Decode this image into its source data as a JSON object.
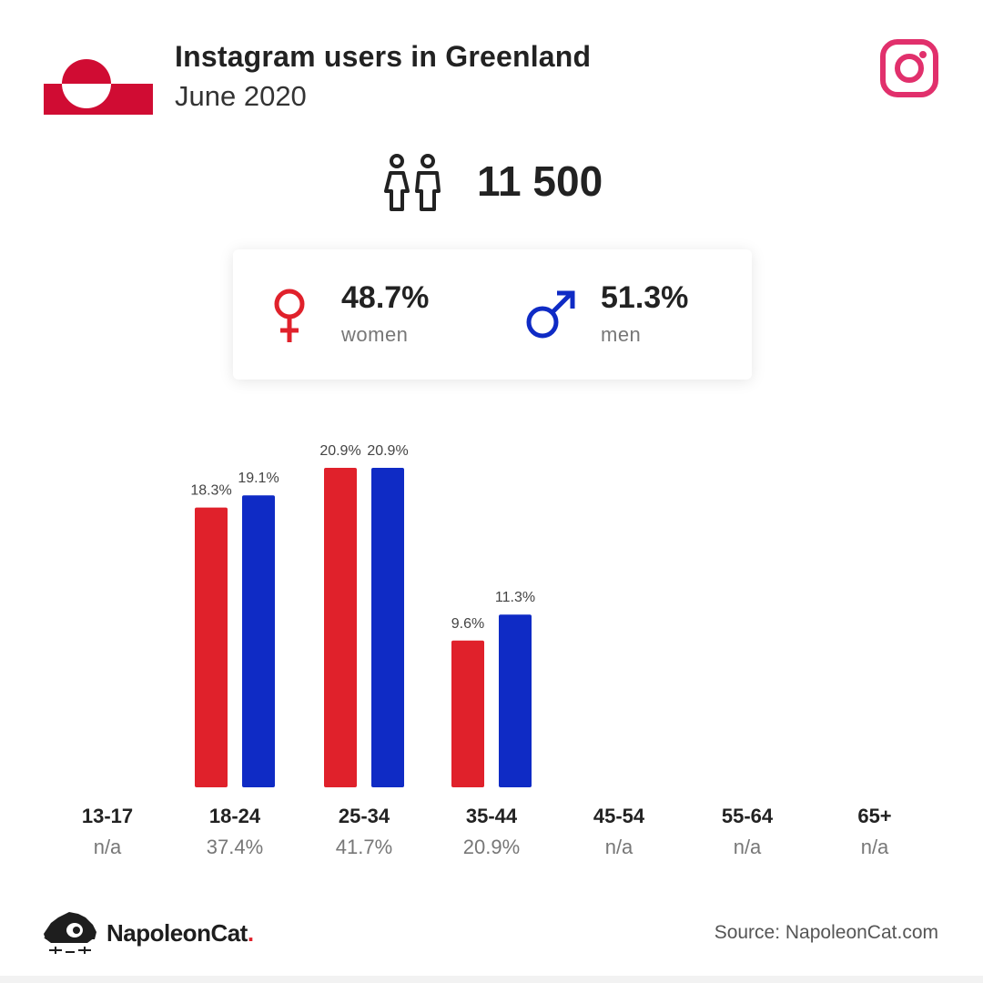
{
  "header": {
    "title": "Instagram users in Greenland",
    "subtitle": "June 2020"
  },
  "total_users": "11 500",
  "gender": {
    "women": {
      "pct": "48.7%",
      "label": "women",
      "color": "#e0212b"
    },
    "men": {
      "pct": "51.3%",
      "label": "men",
      "color": "#0f2bc5"
    }
  },
  "icons": {
    "flag": "greenland-flag-icon",
    "instagram": "instagram-logo-icon",
    "users": "users-icon",
    "female": "female-symbol-icon",
    "male": "male-symbol-icon",
    "brand": "napoleoncat-logo-icon"
  },
  "chart_data": {
    "type": "bar",
    "categories": [
      "13-17",
      "18-24",
      "25-34",
      "35-44",
      "45-54",
      "55-64",
      "65+"
    ],
    "category_totals": [
      "n/a",
      "37.4%",
      "41.7%",
      "20.9%",
      "n/a",
      "n/a",
      "n/a"
    ],
    "series": [
      {
        "color": "#e0212b",
        "values": [
          null,
          18.3,
          20.9,
          9.6,
          null,
          null,
          null
        ],
        "labels": [
          "",
          "18.3%",
          "20.9%",
          "9.6%",
          "",
          "",
          ""
        ]
      },
      {
        "color": "#0f2bc5",
        "values": [
          null,
          19.1,
          20.9,
          11.3,
          null,
          null,
          null
        ],
        "labels": [
          "",
          "19.1%",
          "20.9%",
          "11.3%",
          "",
          "",
          ""
        ]
      }
    ],
    "ylim": [
      0,
      20.9
    ],
    "grid": false,
    "legend": "none"
  },
  "footer": {
    "brand_name": "NapoleonCat",
    "brand_dot": ".",
    "source": "Source: NapoleonCat.com"
  }
}
